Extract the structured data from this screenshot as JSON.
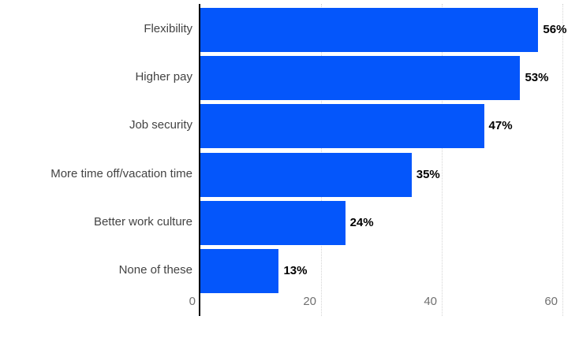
{
  "chart_data": {
    "type": "bar",
    "orientation": "horizontal",
    "title": "",
    "xlabel": "",
    "ylabel": "",
    "categories": [
      "Flexibility",
      "Higher pay",
      "Job security",
      "More time off/vacation time",
      "Better work culture",
      "None of these"
    ],
    "values": [
      56,
      53,
      47,
      35,
      24,
      13
    ],
    "value_labels": [
      "56%",
      "53%",
      "47%",
      "35%",
      "24%",
      "13%"
    ],
    "xlim": [
      0,
      60
    ],
    "x_ticks": [
      0,
      20,
      40,
      60
    ],
    "x_tick_labels": [
      "0",
      "20",
      "40",
      "60"
    ],
    "grid": "vertical",
    "legend": "none",
    "colors": {
      "bar": "#0456fb",
      "axis_line": "#000000",
      "gridline": "#d4d4d4",
      "category_label": "#434343",
      "tick_label": "#707070",
      "value_label": "#000000",
      "background": "#ffffff"
    }
  }
}
